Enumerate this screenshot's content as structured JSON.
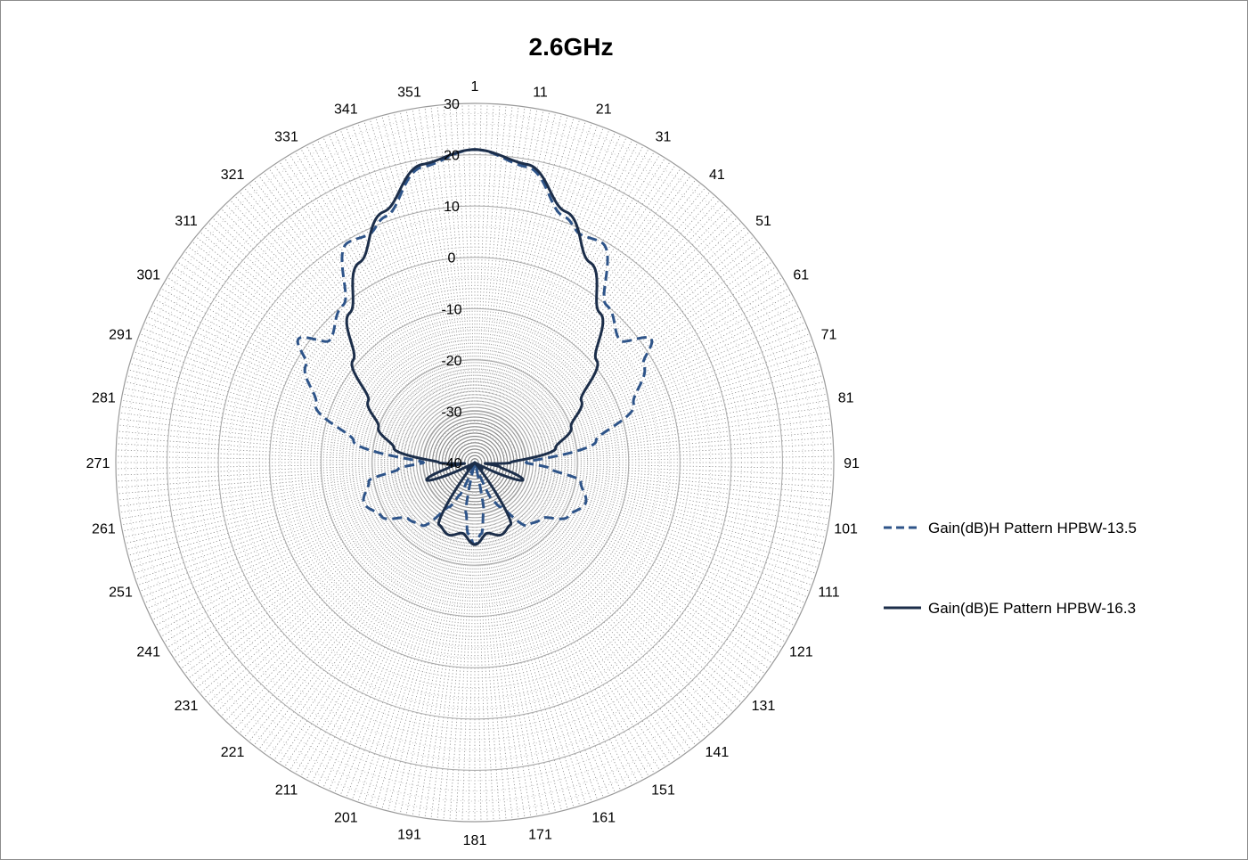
{
  "chart_data": {
    "type": "radar",
    "title": "2.6GHz",
    "angular_axis": {
      "labels": [
        "1",
        "11",
        "21",
        "31",
        "41",
        "51",
        "61",
        "71",
        "81",
        "91",
        "101",
        "111",
        "121",
        "131",
        "141",
        "151",
        "161",
        "171",
        "181",
        "191",
        "201",
        "211",
        "221",
        "231",
        "241",
        "251",
        "261",
        "271",
        "281",
        "291",
        "301",
        "311",
        "321",
        "331",
        "341",
        "351"
      ],
      "direction": "clockwise",
      "start": "top"
    },
    "radial_axis": {
      "min": -40,
      "max": 30,
      "tick_labels": [
        "-40",
        "-30",
        "-20",
        "-10",
        "0",
        "10",
        "20",
        "30"
      ],
      "ticks": [
        -40,
        -30,
        -20,
        -10,
        0,
        10,
        20,
        30
      ]
    },
    "grid": "dotted spokes every degree, solid rings every 10 dB",
    "legend_position": "right",
    "series": [
      {
        "name": "Gain(dB)H Pattern  HPBW-13.5",
        "style": "dashed",
        "color": "#2e5489",
        "angles": [
          0,
          10,
          20,
          25,
          30,
          40,
          50,
          55,
          60,
          70,
          80,
          90,
          95,
          100,
          110,
          120,
          130,
          140,
          150,
          155,
          160,
          165,
          170,
          175,
          180,
          185,
          190,
          195,
          200,
          205,
          210,
          220,
          230,
          240,
          250,
          260,
          265,
          270,
          280,
          290,
          300,
          305,
          310,
          320,
          330,
          335,
          340,
          350,
          360
        ],
        "values": [
          21,
          18.5,
          11,
          9,
          9.5,
          0,
          -3,
          2,
          -2,
          -7,
          -16,
          -30,
          -25,
          -19,
          -17,
          -19,
          -23,
          -24,
          -30,
          -32,
          -38,
          -40,
          -30,
          -26,
          -24,
          -26,
          -30,
          -40,
          -38,
          -33,
          -30,
          -24,
          -23,
          -19,
          -17,
          -19,
          -25,
          -30,
          -16,
          -7,
          -2,
          2,
          -3,
          0,
          9.5,
          9,
          11,
          18.5,
          21
        ]
      },
      {
        "name": "Gain(dB)E Pattern  HPBW-16.3",
        "style": "solid",
        "color": "#1c2e4a",
        "angles": [
          0,
          10,
          20,
          30,
          40,
          50,
          60,
          70,
          80,
          90,
          95,
          100,
          110,
          120,
          135,
          140,
          150,
          160,
          170,
          180,
          190,
          200,
          210,
          220,
          225,
          240,
          250,
          260,
          265,
          270,
          280,
          290,
          300,
          310,
          320,
          330,
          340,
          350,
          360
        ],
        "values": [
          21,
          19,
          12,
          5,
          -2,
          -9,
          -16,
          -20,
          -24,
          -33,
          -38,
          -35,
          -30,
          -40,
          -38,
          -40,
          -26,
          -25,
          -26,
          -24,
          -26,
          -25,
          -26,
          -40,
          -38,
          -40,
          -30,
          -35,
          -38,
          -33,
          -24,
          -20,
          -16,
          -9,
          -2,
          5,
          12,
          19,
          21
        ]
      }
    ]
  }
}
